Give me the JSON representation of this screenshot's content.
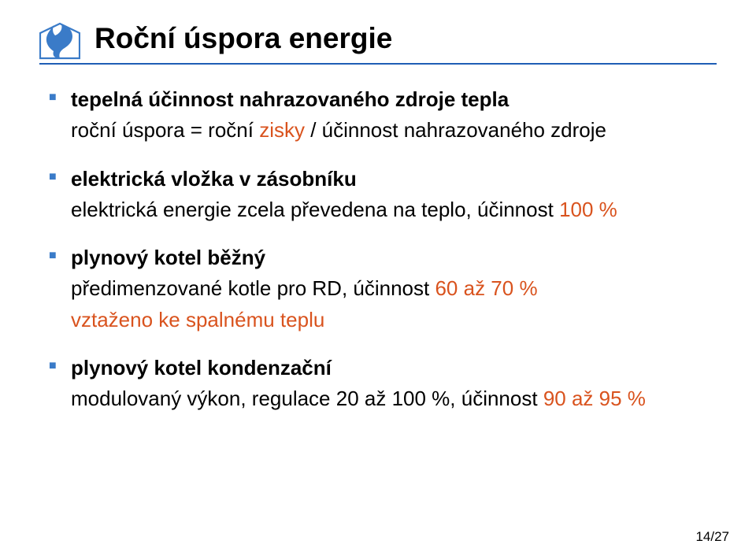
{
  "typography": {
    "title_fontsize": 37,
    "title_weight": "bold",
    "title_color": "#000000",
    "body_fontsize": 26,
    "body_line_height": 1.28,
    "body_color": "#000000",
    "bold_weight": "bold",
    "bullet_color": "#3a7bc8",
    "bullet_fontsize": 16,
    "highlight_color": "#d9531e",
    "page_number_fontsize": 17,
    "page_number_color": "#000000",
    "rule_color": "#1f5eb5",
    "logo_color": "#3a7bc8",
    "background": "#ffffff"
  },
  "title": "Roční úspora energie",
  "bullets": [
    {
      "heading": "tepelná účinnost nahrazovaného zdroje tepla",
      "line_before_hl": "roční úspora = roční ",
      "highlight": "zisky",
      "line_after_hl": " / účinnost nahrazovaného zdroje",
      "line_has_highlight": true
    },
    {
      "heading": "elektrická vložka v zásobníku",
      "line_before_hl": "elektrická energie zcela převedena na teplo, účinnost ",
      "highlight": "100 %",
      "line_after_hl": "",
      "line_has_highlight": true
    },
    {
      "heading": "plynový kotel běžný",
      "line_before_hl": "předimenzované kotle pro RD, účinnost ",
      "highlight": "60 až 70 %",
      "line_after_hl": "",
      "line_has_highlight": true,
      "extra_line": "vztaženo ke spalnému teplu"
    },
    {
      "heading": "plynový kotel kondenzační",
      "line_before_hl": "modulovaný výkon, regulace 20 až 100 %, účinnost ",
      "highlight": "90 až 95 %",
      "line_after_hl": "",
      "line_has_highlight": true
    }
  ],
  "page_number": "14/27"
}
